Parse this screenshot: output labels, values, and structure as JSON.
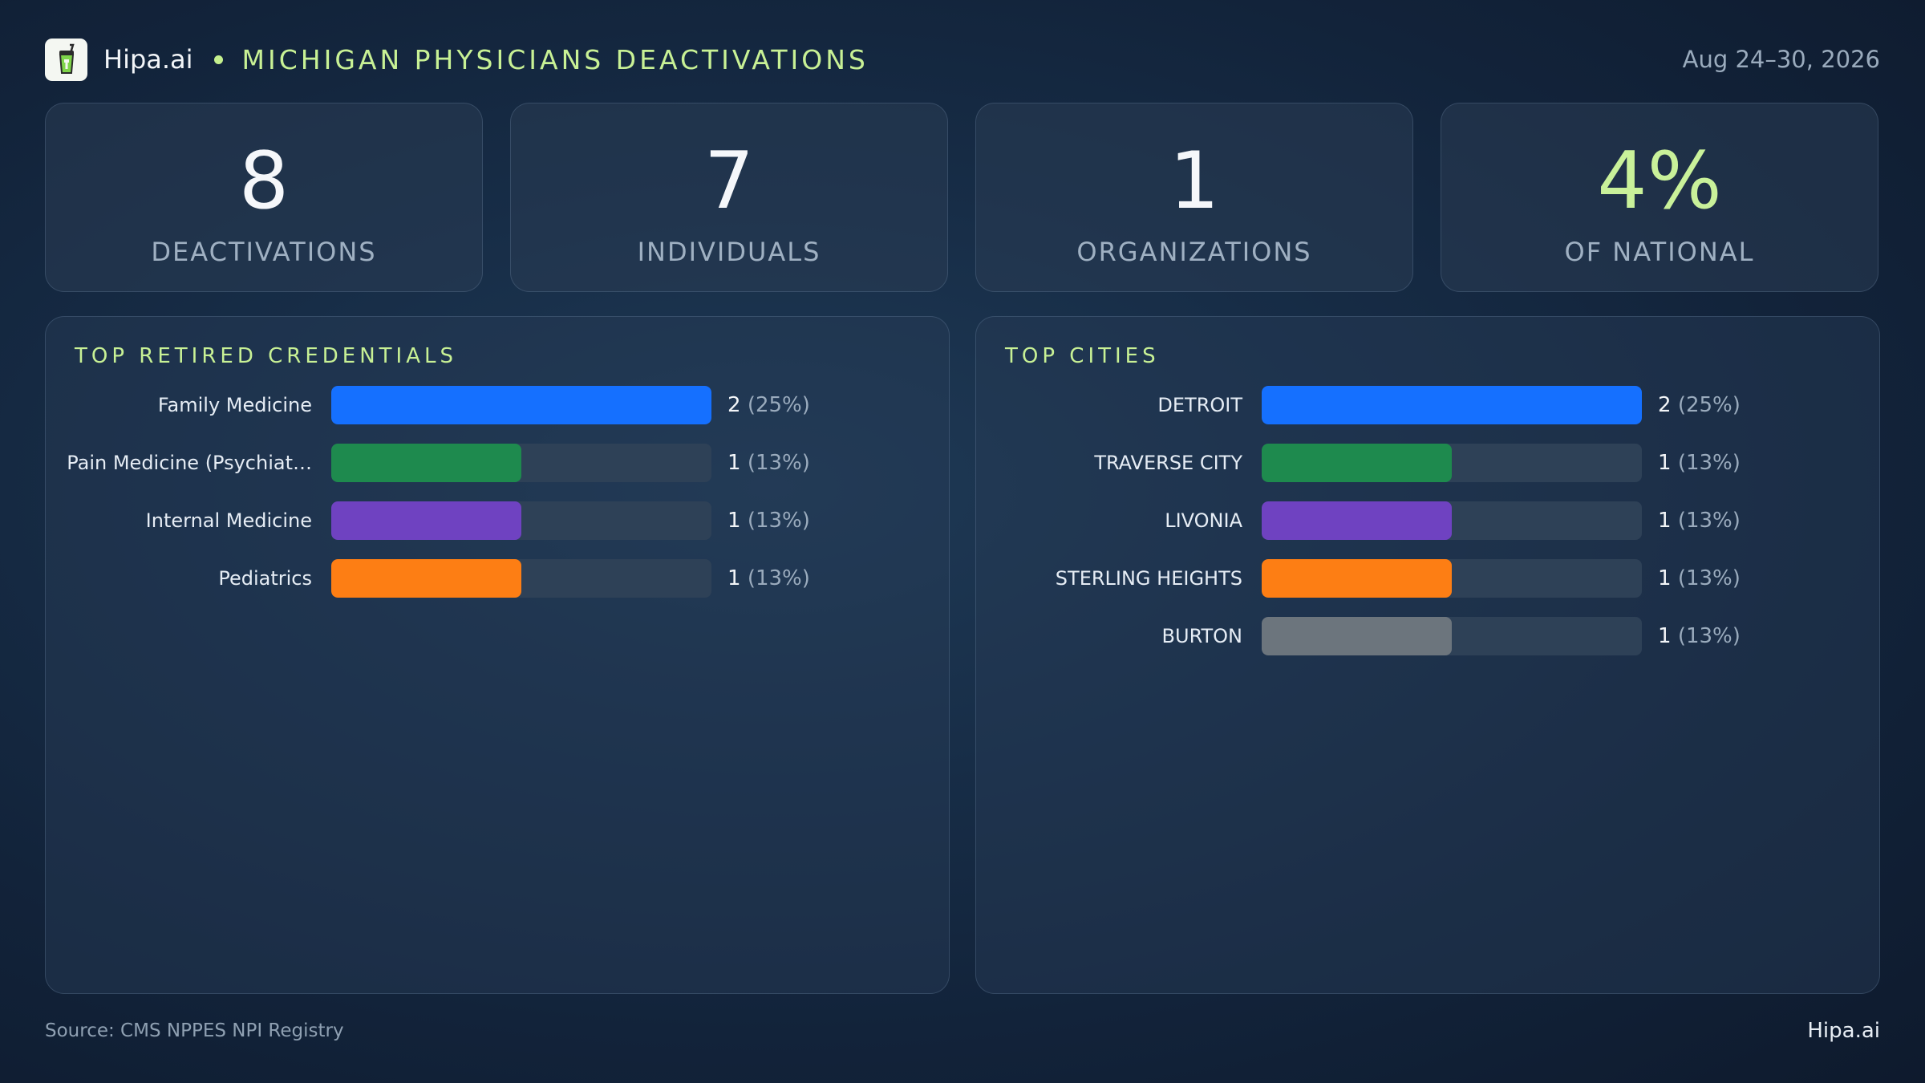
{
  "header": {
    "brand": "Hipa.ai",
    "title": "MICHIGAN PHYSICIANS DEACTIVATIONS",
    "date_range": "Aug 24–30, 2026"
  },
  "stats": [
    {
      "value": "8",
      "label": "DEACTIVATIONS"
    },
    {
      "value": "7",
      "label": "INDIVIDUALS"
    },
    {
      "value": "1",
      "label": "ORGANIZATIONS"
    },
    {
      "value": "4%",
      "label": "OF NATIONAL"
    }
  ],
  "panels": [
    {
      "title": "TOP RETIRED CREDENTIALS",
      "rows": [
        {
          "label": "Family Medicine",
          "count": "2",
          "pct": "(25%)",
          "share": 1.0,
          "color": "#1570ff"
        },
        {
          "label": "Pain Medicine (Psychiat…",
          "count": "1",
          "pct": "(13%)",
          "share": 0.5,
          "color": "#1e8a4e"
        },
        {
          "label": "Internal Medicine",
          "count": "1",
          "pct": "(13%)",
          "share": 0.5,
          "color": "#6f42c1"
        },
        {
          "label": "Pediatrics",
          "count": "1",
          "pct": "(13%)",
          "share": 0.5,
          "color": "#fd7e14"
        }
      ]
    },
    {
      "title": "TOP CITIES",
      "rows": [
        {
          "label": "DETROIT",
          "count": "2",
          "pct": "(25%)",
          "share": 1.0,
          "color": "#1570ff"
        },
        {
          "label": "TRAVERSE CITY",
          "count": "1",
          "pct": "(13%)",
          "share": 0.5,
          "color": "#1e8a4e"
        },
        {
          "label": "LIVONIA",
          "count": "1",
          "pct": "(13%)",
          "share": 0.5,
          "color": "#6f42c1"
        },
        {
          "label": "STERLING HEIGHTS",
          "count": "1",
          "pct": "(13%)",
          "share": 0.5,
          "color": "#fd7e14"
        },
        {
          "label": "BURTON",
          "count": "1",
          "pct": "(13%)",
          "share": 0.5,
          "color": "#6c757d"
        }
      ]
    }
  ],
  "footer": {
    "source": "Source: CMS NPPES NPI Registry",
    "brand": "Hipa.ai"
  }
}
